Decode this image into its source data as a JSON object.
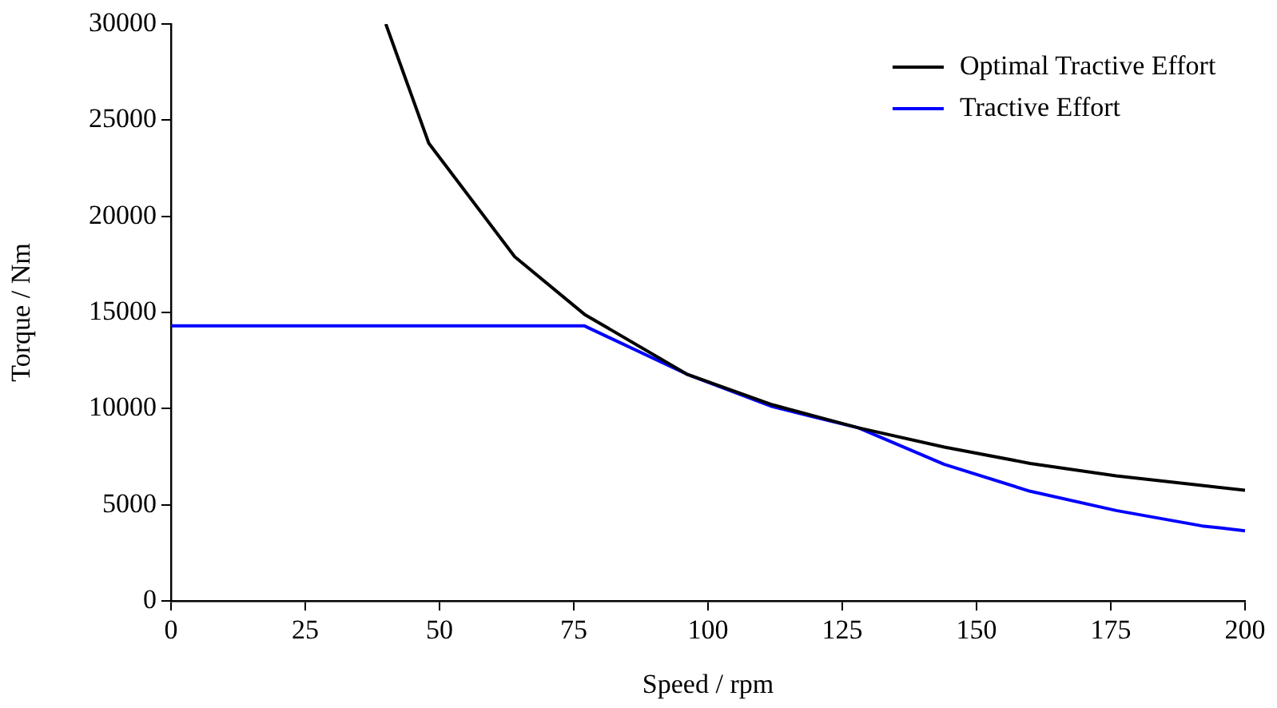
{
  "chart_data": {
    "type": "line",
    "xlabel": "Speed / rpm",
    "ylabel": "Torque / Nm",
    "xlim": [
      0,
      200
    ],
    "xticks": [
      0,
      25,
      50,
      75,
      100,
      125,
      150,
      175,
      200
    ],
    "ylim": [
      0,
      30000
    ],
    "yticks": [
      0,
      5000,
      10000,
      15000,
      20000,
      25000,
      30000
    ],
    "grid": false,
    "legend": "top right",
    "marker": "none",
    "line_style": "solid",
    "series": [
      {
        "name": "Optimal Tractive Effort",
        "color": "#000000",
        "x": [
          40,
          48,
          64,
          77,
          96,
          112,
          128,
          144,
          160,
          176,
          192,
          200
        ],
        "values": [
          30000,
          23800,
          17900,
          14900,
          11800,
          10200,
          9000,
          8000,
          7150,
          6500,
          6000,
          5750
        ]
      },
      {
        "name": "Tractive Effort",
        "color": "#0000ff",
        "x": [
          0,
          77,
          96,
          112,
          128,
          144,
          160,
          176,
          192,
          200
        ],
        "values": [
          14300,
          14300,
          11800,
          10100,
          9000,
          7100,
          5700,
          4700,
          3900,
          3650
        ]
      }
    ]
  }
}
